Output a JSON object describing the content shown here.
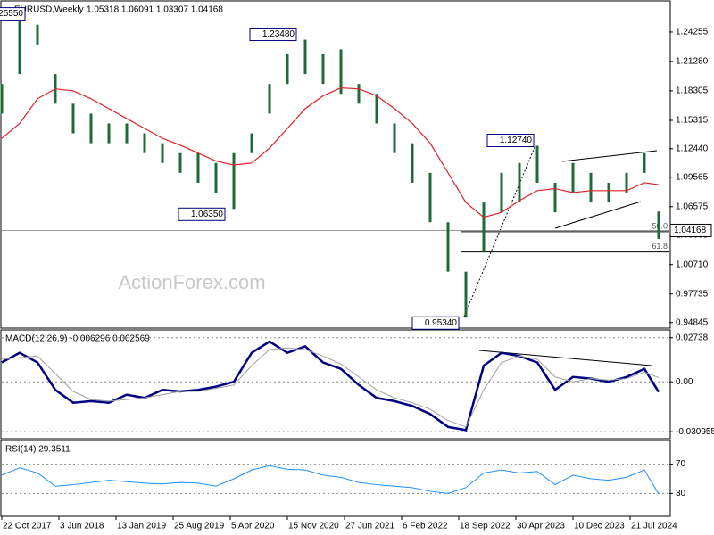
{
  "chart_data": [
    {
      "type": "range",
      "title": "EURUSD,Weekly",
      "subtitle": "1.05318 1.06091 1.03307 1.04168",
      "watermark": "ActionForex.com",
      "x": [
        0,
        10,
        20,
        30,
        40,
        50,
        60,
        70,
        80,
        90,
        100,
        110,
        120,
        130,
        140,
        150,
        160,
        170,
        180,
        190,
        200,
        210,
        220,
        230,
        240,
        250,
        260,
        270,
        280,
        290,
        300,
        310,
        320,
        330,
        340,
        350,
        360,
        368
      ],
      "high": [
        1.19,
        1.2555,
        1.25,
        1.2,
        1.17,
        1.16,
        1.15,
        1.15,
        1.14,
        1.13,
        1.12,
        1.12,
        1.11,
        1.12,
        1.14,
        1.19,
        1.22,
        1.2348,
        1.22,
        1.225,
        1.19,
        1.18,
        1.15,
        1.13,
        1.1,
        1.05,
        1.0,
        1.07,
        1.1,
        1.11,
        1.1274,
        1.09,
        1.11,
        1.1,
        1.09,
        1.1,
        1.12,
        1.06091
      ],
      "low": [
        1.16,
        1.2,
        1.23,
        1.17,
        1.14,
        1.13,
        1.13,
        1.13,
        1.12,
        1.11,
        1.1,
        1.09,
        1.08,
        1.0635,
        1.12,
        1.16,
        1.19,
        1.2,
        1.19,
        1.18,
        1.17,
        1.15,
        1.12,
        1.09,
        1.05,
        1.0,
        0.9534,
        1.02,
        1.06,
        1.07,
        1.09,
        1.06,
        1.08,
        1.07,
        1.07,
        1.08,
        1.1,
        1.03307
      ],
      "ma": [
        1.135,
        1.15,
        1.175,
        1.185,
        1.183,
        1.175,
        1.165,
        1.155,
        1.145,
        1.135,
        1.128,
        1.12,
        1.112,
        1.108,
        1.11,
        1.125,
        1.145,
        1.165,
        1.178,
        1.186,
        1.185,
        1.178,
        1.165,
        1.15,
        1.13,
        1.1,
        1.07,
        1.055,
        1.06,
        1.072,
        1.082,
        1.084,
        1.08,
        1.082,
        1.082,
        1.082,
        1.09,
        1.088
      ],
      "color": "#1e6b3a",
      "ma_color": "#e0202a",
      "xlim": [
        0,
        374
      ],
      "ylim": [
        0.9428,
        1.2732
      ],
      "yticks": [
        {
          "value": 1.24255,
          "label": "1.24255"
        },
        {
          "value": 1.2128,
          "label": "1.21280"
        },
        {
          "value": 1.18305,
          "label": "1.18305"
        },
        {
          "value": 1.15315,
          "label": "1.15315"
        },
        {
          "value": 1.1244,
          "label": "1.12440"
        },
        {
          "value": 1.09565,
          "label": "1.09565"
        },
        {
          "value": 1.06575,
          "label": "1.06575"
        },
        {
          "value": 1.03685,
          "label": "1.03685"
        },
        {
          "value": 1.0071,
          "label": "1.00710"
        },
        {
          "value": 0.97735,
          "label": "0.97735"
        },
        {
          "value": 0.94845,
          "label": "0.94845"
        }
      ],
      "annotations": [
        {
          "label": "1.25550",
          "value": 1.2555,
          "x": 14
        },
        {
          "label": "1.23480",
          "value": 1.2348,
          "x": 166
        },
        {
          "label": "1.06350",
          "value": 1.0635,
          "x": 126
        },
        {
          "label": "1.12740",
          "value": 1.1274,
          "x": 299
        },
        {
          "label": "0.95340",
          "value": 0.9534,
          "x": 257
        }
      ],
      "current": {
        "label": "1.04168",
        "value": 1.04168
      },
      "fib": [
        {
          "label": "50.0",
          "value": 1.0404,
          "x": 257
        },
        {
          "label": "61.8",
          "value": 1.0199,
          "x": 257
        }
      ]
    },
    {
      "type": "line",
      "title": "MACD(12,26,9) -0.006296 0.002569",
      "x": [
        0,
        10,
        20,
        30,
        40,
        50,
        60,
        70,
        80,
        90,
        100,
        110,
        120,
        130,
        140,
        150,
        160,
        170,
        180,
        190,
        200,
        210,
        220,
        230,
        240,
        250,
        260,
        270,
        280,
        290,
        300,
        310,
        320,
        330,
        340,
        350,
        360,
        368
      ],
      "series": [
        {
          "name": "MACD",
          "color": "#000080",
          "values": [
            0.012,
            0.018,
            0.012,
            -0.005,
            -0.013,
            -0.012,
            -0.013,
            -0.008,
            -0.01,
            -0.005,
            -0.006,
            -0.005,
            -0.003,
            0.0,
            0.018,
            0.025,
            0.018,
            0.022,
            0.012,
            0.008,
            -0.002,
            -0.01,
            -0.012,
            -0.015,
            -0.02,
            -0.028,
            -0.03,
            0.01,
            0.018,
            0.016,
            0.012,
            -0.005,
            0.003,
            0.002,
            0.0,
            0.003,
            0.008,
            -0.006296
          ]
        },
        {
          "name": "Signal",
          "color": "#a0a0a0",
          "values": [
            0.014,
            0.015,
            0.016,
            0.005,
            -0.006,
            -0.011,
            -0.012,
            -0.011,
            -0.01,
            -0.008,
            -0.006,
            -0.006,
            -0.004,
            -0.002,
            0.01,
            0.02,
            0.021,
            0.02,
            0.016,
            0.011,
            0.003,
            -0.005,
            -0.01,
            -0.013,
            -0.017,
            -0.024,
            -0.028,
            -0.005,
            0.012,
            0.016,
            0.014,
            0.003,
            0.0,
            0.002,
            0.001,
            0.002,
            0.006,
            0.002569
          ]
        }
      ],
      "xlim": [
        0,
        374
      ],
      "ylim": [
        -0.0342,
        0.0311
      ],
      "yticks": [
        {
          "value": 0.02738,
          "label": "0.02738"
        },
        {
          "value": 0,
          "label": "0.00"
        },
        {
          "value": -0.030955,
          "label": "-0.030955"
        }
      ]
    },
    {
      "type": "line",
      "title": "RSI(14) 29.3511",
      "x": [
        0,
        10,
        20,
        30,
        40,
        50,
        60,
        70,
        80,
        90,
        100,
        110,
        120,
        130,
        140,
        150,
        160,
        170,
        180,
        190,
        200,
        210,
        220,
        230,
        240,
        250,
        260,
        270,
        280,
        290,
        300,
        310,
        320,
        330,
        340,
        350,
        360,
        368
      ],
      "series": [
        {
          "name": "RSI",
          "color": "#1e90ff",
          "values": [
            55,
            65,
            58,
            40,
            42,
            45,
            48,
            46,
            44,
            43,
            45,
            44,
            40,
            50,
            62,
            68,
            63,
            62,
            55,
            52,
            45,
            42,
            40,
            38,
            33,
            30,
            38,
            58,
            62,
            58,
            60,
            42,
            55,
            50,
            48,
            52,
            62,
            29.3511
          ]
        }
      ],
      "xlim": [
        0,
        374
      ],
      "ylim": [
        0,
        100
      ],
      "yticks": [
        70,
        30
      ],
      "xticks": [
        {
          "value": 0,
          "label": "22 Oct 2017"
        },
        {
          "value": 32,
          "label": "3 Jun 2018"
        },
        {
          "value": 64,
          "label": "13 Jan 2019"
        },
        {
          "value": 96,
          "label": "25 Aug 2019"
        },
        {
          "value": 128,
          "label": "5 Apr 2020"
        },
        {
          "value": 160,
          "label": "15 Nov 2020"
        },
        {
          "value": 192,
          "label": "27 Jun 2021"
        },
        {
          "value": 224,
          "label": "6 Feb 2022"
        },
        {
          "value": 256,
          "label": "18 Sep 2022"
        },
        {
          "value": 288,
          "label": "30 Apr 2023"
        },
        {
          "value": 320,
          "label": "10 Dec 2023"
        },
        {
          "value": 352,
          "label": "21 Jul 2024"
        }
      ]
    }
  ]
}
